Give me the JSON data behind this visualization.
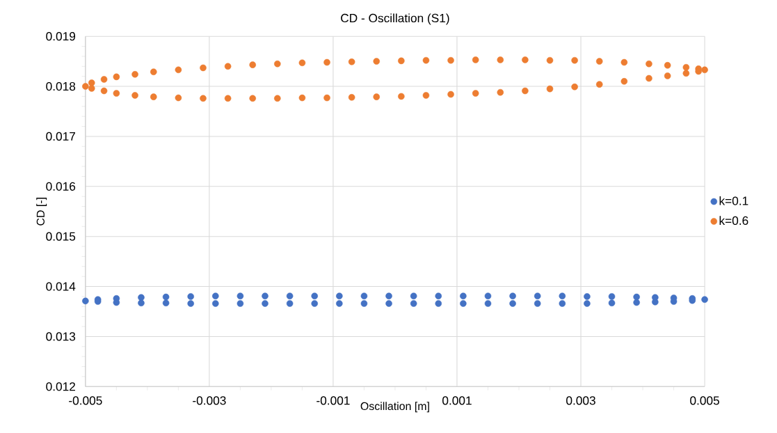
{
  "chart_data": {
    "type": "scatter",
    "title": "CD - Oscillation (S1)",
    "xlabel": "Oscillation [m]",
    "ylabel": "CD [-]",
    "xlim": [
      -0.005,
      0.005
    ],
    "xticks": [
      -0.005,
      -0.003,
      -0.001,
      0.001,
      0.003,
      0.005
    ],
    "ylim": [
      0.012,
      0.019
    ],
    "yticks": [
      0.012,
      0.013,
      0.014,
      0.015,
      0.016,
      0.017,
      0.018,
      0.019
    ],
    "grid": true,
    "legend": "right",
    "marker": "circle",
    "series": [
      {
        "name": "k=0.1",
        "color": "#4472c4",
        "x": [
          -0.005,
          -0.0048,
          -0.0045,
          -0.0041,
          -0.0037,
          -0.0033,
          -0.0029,
          -0.0025,
          -0.0021,
          -0.0017,
          -0.0013,
          -0.0009,
          -0.0005,
          -0.0001,
          0.0003,
          0.0007,
          0.0011,
          0.0015,
          0.0019,
          0.0023,
          0.0027,
          0.0031,
          0.0035,
          0.0039,
          0.0042,
          0.0045,
          0.0048,
          0.005,
          0.0048,
          0.0045,
          0.0042,
          0.0039,
          0.0035,
          0.0031,
          0.0027,
          0.0023,
          0.0019,
          0.0015,
          0.0011,
          0.0007,
          0.0003,
          -0.0001,
          -0.0005,
          -0.0009,
          -0.0013,
          -0.0017,
          -0.0021,
          -0.0025,
          -0.0029,
          -0.0033,
          -0.0037,
          -0.0041,
          -0.0045,
          -0.0048
        ],
        "values": [
          0.01371,
          0.01374,
          0.01376,
          0.01378,
          0.01379,
          0.0138,
          0.01381,
          0.01381,
          0.01381,
          0.01381,
          0.01381,
          0.01381,
          0.01381,
          0.01381,
          0.01381,
          0.01381,
          0.01381,
          0.01381,
          0.01381,
          0.01381,
          0.01381,
          0.0138,
          0.0138,
          0.01379,
          0.01378,
          0.01377,
          0.01376,
          0.01374,
          0.01372,
          0.0137,
          0.01369,
          0.01368,
          0.01367,
          0.01366,
          0.01366,
          0.01366,
          0.01366,
          0.01366,
          0.01366,
          0.01366,
          0.01366,
          0.01366,
          0.01366,
          0.01366,
          0.01366,
          0.01366,
          0.01366,
          0.01366,
          0.01366,
          0.01366,
          0.01367,
          0.01367,
          0.01368,
          0.0137
        ]
      },
      {
        "name": "k=0.6",
        "color": "#ed7d31",
        "x": [
          -0.005,
          -0.0049,
          -0.0047,
          -0.0045,
          -0.0042,
          -0.0039,
          -0.0035,
          -0.0031,
          -0.0027,
          -0.0023,
          -0.0019,
          -0.0015,
          -0.0011,
          -0.0007,
          -0.0003,
          0.0001,
          0.0005,
          0.0009,
          0.0013,
          0.0017,
          0.0021,
          0.0025,
          0.0029,
          0.0033,
          0.0037,
          0.0041,
          0.0044,
          0.0047,
          0.0049,
          0.005,
          0.0049,
          0.0047,
          0.0044,
          0.0041,
          0.0037,
          0.0033,
          0.0029,
          0.0025,
          0.0021,
          0.0017,
          0.0013,
          0.0009,
          0.0005,
          0.0001,
          -0.0003,
          -0.0007,
          -0.0011,
          -0.0015,
          -0.0019,
          -0.0023,
          -0.0027,
          -0.0031,
          -0.0035,
          -0.0039,
          -0.0042,
          -0.0045,
          -0.0047,
          -0.0049
        ],
        "values": [
          0.018,
          0.01807,
          0.01814,
          0.01819,
          0.01824,
          0.01829,
          0.01833,
          0.01837,
          0.0184,
          0.01843,
          0.01845,
          0.01847,
          0.01848,
          0.01849,
          0.0185,
          0.01851,
          0.01852,
          0.01852,
          0.01853,
          0.01853,
          0.01853,
          0.01852,
          0.01852,
          0.0185,
          0.01848,
          0.01845,
          0.01842,
          0.01838,
          0.01835,
          0.01833,
          0.0183,
          0.01826,
          0.01821,
          0.01816,
          0.0181,
          0.01804,
          0.01799,
          0.01795,
          0.01791,
          0.01788,
          0.01786,
          0.01784,
          0.01782,
          0.0178,
          0.01779,
          0.01778,
          0.01777,
          0.01777,
          0.01776,
          0.01776,
          0.01776,
          0.01776,
          0.01777,
          0.01779,
          0.01782,
          0.01786,
          0.01791,
          0.01796
        ]
      }
    ]
  }
}
